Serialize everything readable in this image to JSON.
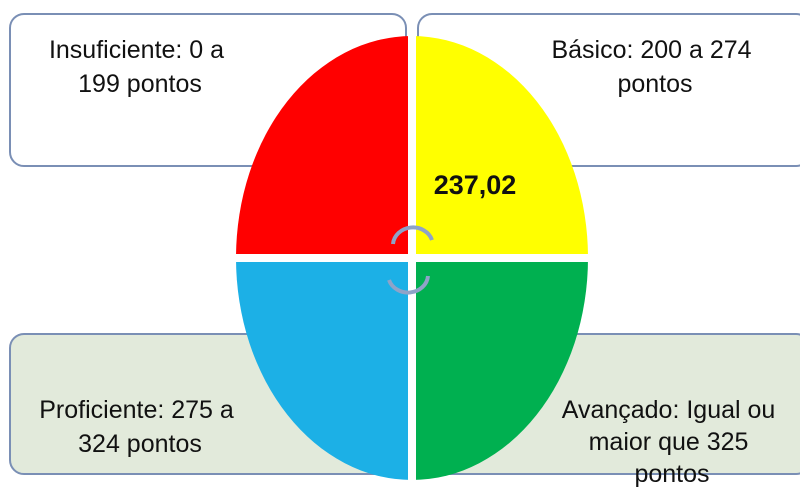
{
  "levels": [
    {
      "lines": [
        "Insuficiente: 0 a",
        "199 pontos"
      ]
    },
    {
      "lines": [
        "Básico: 200 a 274",
        "pontos"
      ]
    },
    {
      "lines": [
        "Proficiente: 275 a",
        "324 pontos"
      ]
    },
    {
      "lines": [
        "Avançado: Igual ou",
        "maior que 325",
        "pontos"
      ]
    }
  ],
  "score": "237,02"
}
